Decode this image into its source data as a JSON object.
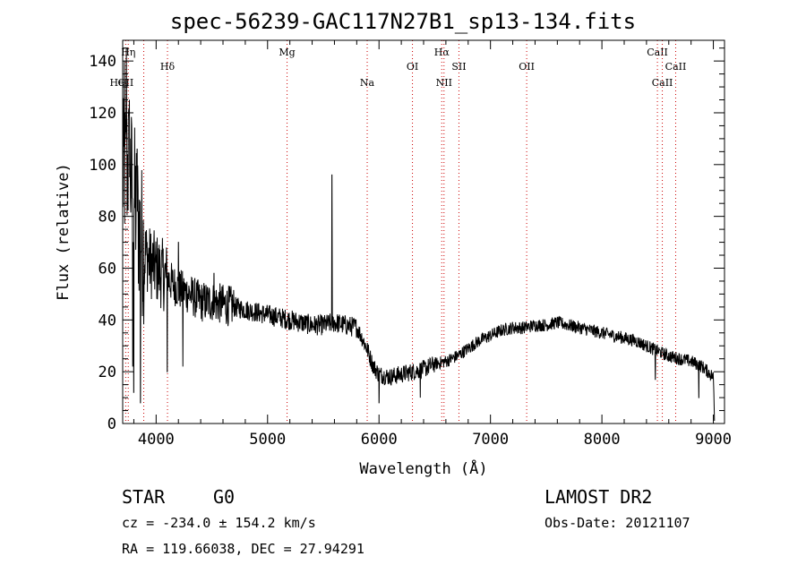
{
  "chart_data": {
    "type": "line",
    "title": "spec-56239-GAC117N27B1_sp13-134.fits",
    "xlabel": "Wavelength (Å)",
    "ylabel": "Flux (relative)",
    "xlim": [
      3700,
      9100
    ],
    "ylim": [
      0,
      148
    ],
    "xticks": [
      4000,
      5000,
      6000,
      7000,
      8000,
      9000
    ],
    "yticks": [
      0,
      20,
      40,
      60,
      80,
      100,
      120,
      140
    ],
    "grid": false,
    "line_color": "#000000",
    "marker_color": "#cc0000",
    "lines": [
      {
        "label": "OII",
        "x": 3727
      },
      {
        "label": "Hη",
        "x": 3750
      },
      {
        "label": "HeI",
        "x": 3889
      },
      {
        "label": "Hδ",
        "x": 4102
      },
      {
        "label": "Mg",
        "x": 5175
      },
      {
        "label": "Na",
        "x": 5894
      },
      {
        "label": "OI",
        "x": 6300
      },
      {
        "label": "Hα",
        "x": 6563
      },
      {
        "label": "NII",
        "x": 6583
      },
      {
        "label": "SII",
        "x": 6717
      },
      {
        "label": "OII",
        "x": 7325
      },
      {
        "label": "CaII",
        "x": 8498
      },
      {
        "label": "CaII",
        "x": 8542
      },
      {
        "label": "CaII",
        "x": 8662
      }
    ],
    "continuum": [
      [
        3700,
        95
      ],
      [
        3750,
        100
      ],
      [
        3800,
        88
      ],
      [
        3850,
        75
      ],
      [
        3900,
        66
      ],
      [
        3950,
        62
      ],
      [
        4000,
        60
      ],
      [
        4100,
        56
      ],
      [
        4200,
        52
      ],
      [
        4300,
        50
      ],
      [
        4400,
        47
      ],
      [
        4500,
        47
      ],
      [
        4600,
        46
      ],
      [
        4700,
        45
      ],
      [
        4800,
        44
      ],
      [
        4900,
        43
      ],
      [
        5000,
        42
      ],
      [
        5100,
        41
      ],
      [
        5200,
        40
      ],
      [
        5300,
        39
      ],
      [
        5400,
        38
      ],
      [
        5500,
        38
      ],
      [
        5600,
        39
      ],
      [
        5700,
        38
      ],
      [
        5800,
        37
      ],
      [
        5850,
        33
      ],
      [
        5900,
        28
      ],
      [
        5950,
        22
      ],
      [
        6000,
        19
      ],
      [
        6100,
        18
      ],
      [
        6200,
        19
      ],
      [
        6300,
        20
      ],
      [
        6400,
        21
      ],
      [
        6500,
        23
      ],
      [
        6600,
        24
      ],
      [
        6700,
        26
      ],
      [
        6800,
        29
      ],
      [
        6900,
        32
      ],
      [
        7000,
        34
      ],
      [
        7100,
        36
      ],
      [
        7200,
        37
      ],
      [
        7300,
        37
      ],
      [
        7400,
        38
      ],
      [
        7500,
        38
      ],
      [
        7600,
        39
      ],
      [
        7700,
        38
      ],
      [
        7800,
        37
      ],
      [
        7900,
        36
      ],
      [
        8000,
        35
      ],
      [
        8100,
        34
      ],
      [
        8200,
        33
      ],
      [
        8300,
        32
      ],
      [
        8400,
        30
      ],
      [
        8500,
        28
      ],
      [
        8600,
        26
      ],
      [
        8700,
        25
      ],
      [
        8800,
        24
      ],
      [
        8900,
        22
      ],
      [
        9000,
        18
      ],
      [
        9010,
        2
      ]
    ],
    "features": [
      {
        "x": 3715,
        "y": 140
      },
      {
        "x": 3733,
        "y": 145
      },
      {
        "x": 3760,
        "y": 125
      },
      {
        "x": 3790,
        "y": 22
      },
      {
        "x": 3800,
        "y": 12
      },
      {
        "x": 3830,
        "y": 106
      },
      {
        "x": 3860,
        "y": 8
      },
      {
        "x": 4100,
        "y": 20
      },
      {
        "x": 4200,
        "y": 70
      },
      {
        "x": 4240,
        "y": 22
      },
      {
        "x": 4520,
        "y": 58
      },
      {
        "x": 5577,
        "y": 96
      },
      {
        "x": 6000,
        "y": 8
      },
      {
        "x": 6370,
        "y": 10
      },
      {
        "x": 8480,
        "y": 17
      },
      {
        "x": 8870,
        "y": 10
      }
    ]
  },
  "info": {
    "object_type": "STAR",
    "subclass": "G0",
    "survey": "LAMOST DR2",
    "cz": "cz = -234.0 ± 154.2 km/s",
    "obs_date": "Obs-Date: 20121107",
    "coords": "RA = 119.66038, DEC =  27.94291"
  }
}
